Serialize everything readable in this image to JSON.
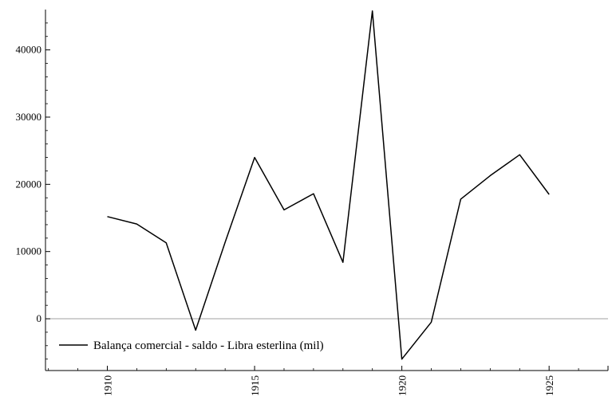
{
  "chart_data": {
    "type": "line",
    "title": "",
    "xlabel": "",
    "ylabel": "",
    "xlim": [
      1907.9,
      1927.0
    ],
    "ylim": [
      -7700,
      46000
    ],
    "x_ticks": [
      1910,
      1915,
      1920,
      1925
    ],
    "y_ticks": [
      0,
      10000,
      20000,
      30000,
      40000
    ],
    "legend": {
      "position": "bottom-left"
    },
    "grid": false,
    "reference_line": 0,
    "series": [
      {
        "name": "Balança comercial - saldo - Libra esterlina (mil)",
        "color": "#000000",
        "points": [
          {
            "x": 1910,
            "y": 15200
          },
          {
            "x": 1911,
            "y": 14100
          },
          {
            "x": 1912,
            "y": 11300
          },
          {
            "x": 1913,
            "y": -1700
          },
          {
            "x": 1914,
            "y": 11400
          },
          {
            "x": 1915,
            "y": 24000
          },
          {
            "x": 1916,
            "y": 16200
          },
          {
            "x": 1917,
            "y": 18600
          },
          {
            "x": 1918,
            "y": 8400
          },
          {
            "x": 1919,
            "y": 45800
          },
          {
            "x": 1920,
            "y": -6000
          },
          {
            "x": 1921,
            "y": -500
          },
          {
            "x": 1922,
            "y": 17800
          },
          {
            "x": 1923,
            "y": 21300
          },
          {
            "x": 1924,
            "y": 24400
          },
          {
            "x": 1925,
            "y": 18500
          }
        ]
      }
    ]
  }
}
